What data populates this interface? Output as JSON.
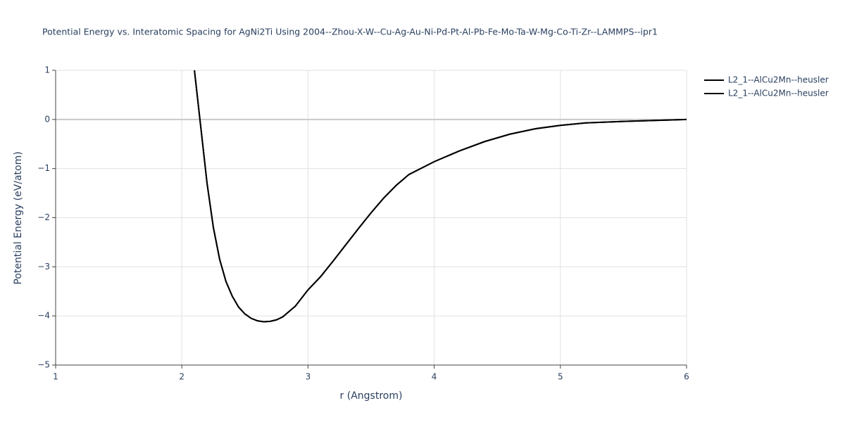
{
  "chart_data": {
    "type": "line",
    "title": "Potential Energy vs. Interatomic Spacing for AgNi2Ti Using 2004--Zhou-X-W--Cu-Ag-Au-Ni-Pd-Pt-Al-Pb-Fe-Mo-Ta-W-Mg-Co-Ti-Zr--LAMMPS--ipr1",
    "xlabel": "r (Angstrom)",
    "ylabel": "Potential Energy (eV/atom)",
    "x": [
      2.1,
      2.15,
      2.2,
      2.25,
      2.3,
      2.35,
      2.4,
      2.45,
      2.5,
      2.55,
      2.6,
      2.65,
      2.7,
      2.75,
      2.8,
      2.9,
      3.0,
      3.1,
      3.2,
      3.3,
      3.4,
      3.5,
      3.6,
      3.7,
      3.8,
      3.9,
      4.0,
      4.2,
      4.4,
      4.6,
      4.8,
      5.0,
      5.2,
      5.5,
      6.0
    ],
    "series": [
      {
        "name": "L2_1--AlCu2Mn--heusler",
        "color": "#000000",
        "values": [
          1.0,
          -0.15,
          -1.3,
          -2.2,
          -2.85,
          -3.3,
          -3.6,
          -3.82,
          -3.96,
          -4.05,
          -4.1,
          -4.12,
          -4.11,
          -4.08,
          -4.02,
          -3.8,
          -3.47,
          -3.2,
          -2.88,
          -2.55,
          -2.22,
          -1.9,
          -1.6,
          -1.34,
          -1.12,
          -0.99,
          -0.86,
          -0.64,
          -0.45,
          -0.3,
          -0.19,
          -0.12,
          -0.07,
          -0.04,
          0
        ]
      },
      {
        "name": "L2_1--AlCu2Mn--heusler",
        "color": "#000000",
        "values": [
          1.0,
          -0.15,
          -1.3,
          -2.2,
          -2.85,
          -3.3,
          -3.6,
          -3.82,
          -3.96,
          -4.05,
          -4.1,
          -4.12,
          -4.11,
          -4.08,
          -4.02,
          -3.8,
          -3.47,
          -3.2,
          -2.88,
          -2.55,
          -2.22,
          -1.9,
          -1.6,
          -1.34,
          -1.12,
          -0.99,
          -0.86,
          -0.64,
          -0.45,
          -0.3,
          -0.19,
          -0.12,
          -0.07,
          -0.04,
          0
        ]
      }
    ],
    "xlim": [
      1,
      6
    ],
    "xticks": [
      1,
      2,
      3,
      4,
      5,
      6
    ],
    "ylim": [
      -5,
      1
    ],
    "yticks": [
      {
        "value": -5,
        "label": "−5"
      },
      {
        "value": -4,
        "label": "−4"
      },
      {
        "value": -3,
        "label": "−3"
      },
      {
        "value": -2,
        "label": "−2"
      },
      {
        "value": -1,
        "label": "−1"
      },
      0,
      1
    ],
    "grid": true
  }
}
